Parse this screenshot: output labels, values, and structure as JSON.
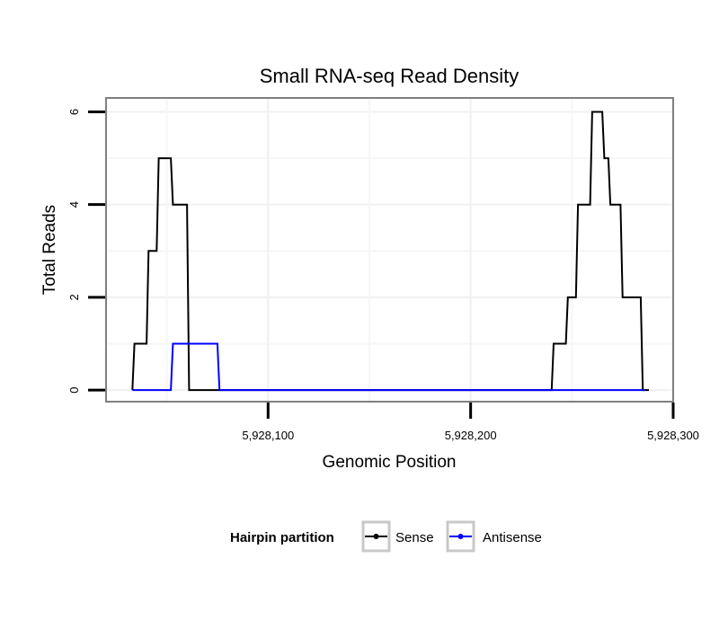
{
  "chart_data": {
    "type": "line",
    "title": "Small RNA-seq Read Density",
    "xlabel": "Genomic Position",
    "ylabel": "Total Reads",
    "xlim": [
      5928020,
      5928300
    ],
    "ylim": [
      -0.25,
      6.3
    ],
    "x_ticks": [
      5928100,
      5928200,
      5928300
    ],
    "x_tick_labels": [
      "5,928,100",
      "5,928,200",
      "5,928,300"
    ],
    "y_ticks": [
      0,
      2,
      4,
      6
    ],
    "y_tick_labels": [
      "0",
      "2",
      "4",
      "6"
    ],
    "grid": true,
    "legend": {
      "title": "Hairpin partition",
      "position": "bottom",
      "entries": [
        "Sense",
        "Antisense"
      ]
    },
    "series": [
      {
        "name": "Sense",
        "color": "#000000",
        "x": [
          5928033,
          5928034,
          5928040,
          5928041,
          5928045,
          5928046,
          5928052,
          5928053,
          5928060,
          5928061,
          5928240,
          5928241,
          5928247,
          5928248,
          5928252,
          5928253,
          5928259,
          5928260,
          5928262,
          5928263,
          5928265,
          5928266,
          5928268,
          5928269,
          5928274,
          5928275,
          5928284,
          5928285,
          5928288
        ],
        "y": [
          0,
          1,
          1,
          3,
          3,
          5,
          5,
          4,
          4,
          0,
          0,
          1,
          1,
          2,
          2,
          4,
          4,
          6,
          6,
          6,
          6,
          5,
          5,
          4,
          4,
          2,
          2,
          0,
          0
        ]
      },
      {
        "name": "Antisense",
        "color": "#0000ff",
        "x": [
          5928033,
          5928052,
          5928053,
          5928075,
          5928076,
          5928286
        ],
        "y": [
          0,
          0,
          1,
          1,
          0,
          0
        ]
      }
    ]
  }
}
